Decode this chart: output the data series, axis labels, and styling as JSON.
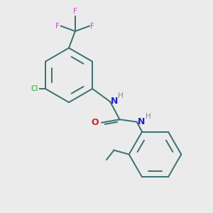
{
  "background_color": "#ebebeb",
  "bond_color": "#3a7070",
  "cl_color": "#22aa22",
  "f_color": "#cc44cc",
  "n_color": "#2222cc",
  "o_color": "#cc2222",
  "h_color": "#888888",
  "figsize": [
    3.0,
    3.0
  ],
  "dpi": 100,
  "xlim": [
    0,
    10
  ],
  "ylim": [
    0,
    10
  ]
}
